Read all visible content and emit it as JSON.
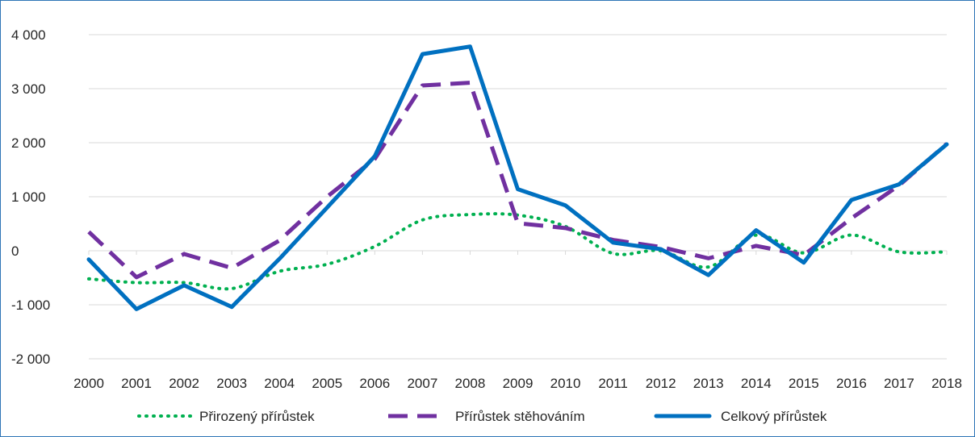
{
  "chart_data": {
    "type": "line",
    "title": "",
    "xlabel": "",
    "ylabel": "",
    "x": [
      "2000",
      "2001",
      "2002",
      "2003",
      "2004",
      "2005",
      "2006",
      "2007",
      "2008",
      "2009",
      "2010",
      "2011",
      "2012",
      "2013",
      "2014",
      "2015",
      "2016",
      "2017",
      "2018"
    ],
    "ylim": [
      -2000,
      4000
    ],
    "yticks": [
      -2000,
      -1000,
      0,
      1000,
      2000,
      3000,
      4000
    ],
    "ytick_labels": [
      "-2 000",
      "-1 000",
      "0",
      "1 000",
      "2 000",
      "3 000",
      "4 000"
    ],
    "grid": "horizontal",
    "legend_position": "bottom",
    "series": [
      {
        "name": "Přirozený přírůstek",
        "style": "dotted",
        "color": "#00b050",
        "values": [
          -520,
          -590,
          -590,
          -700,
          -380,
          -250,
          80,
          570,
          670,
          660,
          450,
          -50,
          0,
          -300,
          290,
          -40,
          290,
          -20,
          -20
        ]
      },
      {
        "name": "Přírůstek stěhováním",
        "style": "dashed",
        "color": "#7030a0",
        "values": [
          350,
          -490,
          -60,
          -320,
          190,
          1000,
          1700,
          3060,
          3110,
          510,
          420,
          200,
          70,
          -140,
          90,
          -80,
          600,
          1210,
          1980
        ]
      },
      {
        "name": "Celkový přírůstek",
        "style": "solid",
        "color": "#0070c0",
        "values": [
          -160,
          -1080,
          -640,
          -1040,
          -150,
          800,
          1750,
          3640,
          3780,
          1140,
          840,
          150,
          30,
          -450,
          380,
          -220,
          940,
          1230,
          1970
        ]
      }
    ]
  }
}
